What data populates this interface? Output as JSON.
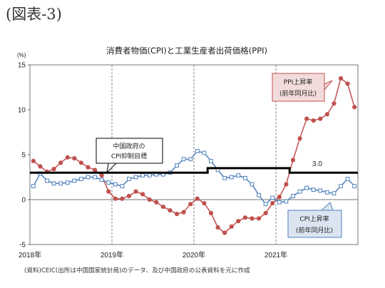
{
  "figure_label": "(図表-3)",
  "chart_data": {
    "type": "line",
    "title": "消費者物価(CPI)と工業生産者出荷価格(PPI)",
    "y_unit": "(%)",
    "ylim": [
      -5,
      15
    ],
    "yticks": [
      -5,
      0,
      5,
      10,
      15
    ],
    "year_labels": [
      "2018年",
      "2019年",
      "2020年",
      "2021年"
    ],
    "month_range": [
      "2018-01",
      "2021-12"
    ],
    "grid": "vertical dashed lines at January of each year",
    "series": [
      {
        "name": "PPI上昇率(前年同月比)",
        "color": "#c0504d",
        "values": [
          4.3,
          3.7,
          3.1,
          3.4,
          4.1,
          4.7,
          4.6,
          4.1,
          3.6,
          3.3,
          2.7,
          0.9,
          0.1,
          0.1,
          0.4,
          0.9,
          0.6,
          0.0,
          -0.3,
          -0.8,
          -1.2,
          -1.6,
          -1.4,
          -0.5,
          0.1,
          -0.4,
          -1.5,
          -3.1,
          -3.7,
          -3.0,
          -2.4,
          -2.0,
          -2.1,
          -2.1,
          -1.5,
          -0.4,
          0.3,
          1.7,
          4.4,
          6.8,
          9.0,
          8.8,
          9.0,
          9.5,
          10.7,
          13.5,
          12.9,
          10.3
        ]
      },
      {
        "name": "CPI上昇率(前年同月比)",
        "color": "#4f81bd",
        "values": [
          1.5,
          2.9,
          2.1,
          1.8,
          1.8,
          1.9,
          2.1,
          2.3,
          2.5,
          2.5,
          2.2,
          1.9,
          1.7,
          1.5,
          2.3,
          2.5,
          2.7,
          2.7,
          2.8,
          2.8,
          3.0,
          3.8,
          4.5,
          4.5,
          5.4,
          5.2,
          4.3,
          3.3,
          2.4,
          2.5,
          2.7,
          2.4,
          1.7,
          0.5,
          -0.5,
          0.2,
          -0.3,
          -0.2,
          0.4,
          0.9,
          1.3,
          1.1,
          1.0,
          0.8,
          0.7,
          1.5,
          2.3,
          1.5
        ]
      },
      {
        "name": "中国政府のCPI抑制目標",
        "color": "#000000",
        "values": [
          3.0,
          3.0,
          3.0,
          3.0,
          3.0,
          3.0,
          3.0,
          3.0,
          3.0,
          3.0,
          3.0,
          3.0,
          3.0,
          3.0,
          3.0,
          3.0,
          3.0,
          3.0,
          3.0,
          3.0,
          3.0,
          3.0,
          3.0,
          3.0,
          3.0,
          3.0,
          3.5,
          3.5,
          3.5,
          3.5,
          3.5,
          3.5,
          3.5,
          3.5,
          3.5,
          3.5,
          3.5,
          3.5,
          3.0,
          3.0,
          3.0,
          3.0,
          3.0,
          3.0,
          3.0,
          3.0,
          3.0,
          3.0
        ]
      }
    ],
    "annotations": {
      "ppi_callout": [
        "PPI上昇率",
        "(前年同月比)"
      ],
      "cpi_callout": [
        "CPI上昇率",
        "(前年同月比)"
      ],
      "target_callout": [
        "中国政府の",
        "CPI抑制目標"
      ],
      "target_value_label": "3.0"
    },
    "source_note": "(資料)CEIC(出所は中国国家統計局)のデータ、及び中国政府の公表資料を元に作成"
  }
}
